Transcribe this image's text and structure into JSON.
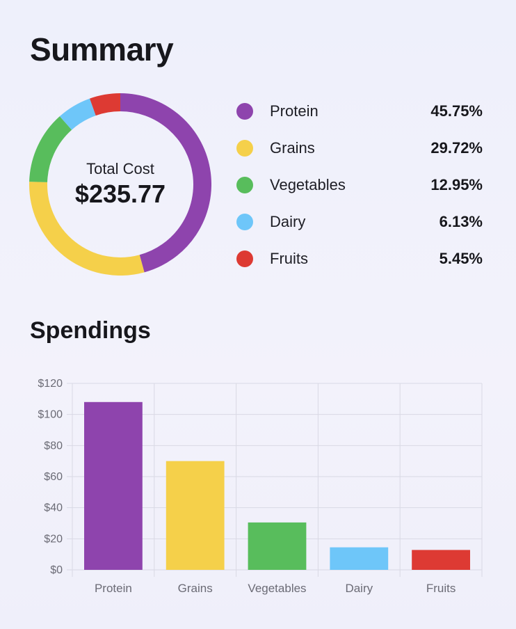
{
  "summary": {
    "title": "Summary",
    "total_label": "Total Cost",
    "total_value": "$235.77"
  },
  "legend": [
    {
      "label": "Protein",
      "percent": "45.75%",
      "color": "#8e44ad"
    },
    {
      "label": "Grains",
      "percent": "29.72%",
      "color": "#f5d04a"
    },
    {
      "label": "Vegetables",
      "percent": "12.95%",
      "color": "#58bd5c"
    },
    {
      "label": "Dairy",
      "percent": "6.13%",
      "color": "#6ec6f9"
    },
    {
      "label": "Fruits",
      "percent": "5.45%",
      "color": "#dd3a33"
    }
  ],
  "spendings": {
    "title": "Spendings"
  },
  "chart_data": [
    {
      "type": "pie",
      "categories": [
        "Protein",
        "Grains",
        "Vegetables",
        "Dairy",
        "Fruits"
      ],
      "values": [
        45.75,
        29.72,
        12.95,
        6.13,
        5.45
      ],
      "colors": [
        "#8e44ad",
        "#f5d04a",
        "#58bd5c",
        "#6ec6f9",
        "#dd3a33"
      ],
      "donut": true
    },
    {
      "type": "bar",
      "categories": [
        "Protein",
        "Grains",
        "Vegetables",
        "Dairy",
        "Fruits"
      ],
      "values": [
        108,
        70,
        30.5,
        14.5,
        12.8
      ],
      "colors": [
        "#8e44ad",
        "#f5d04a",
        "#58bd5c",
        "#6ec6f9",
        "#dd3a33"
      ],
      "ylim": [
        0,
        120
      ],
      "yticks": [
        "$0",
        "$20",
        "$40",
        "$60",
        "$80",
        "$100",
        "$120"
      ],
      "grid": true
    }
  ]
}
